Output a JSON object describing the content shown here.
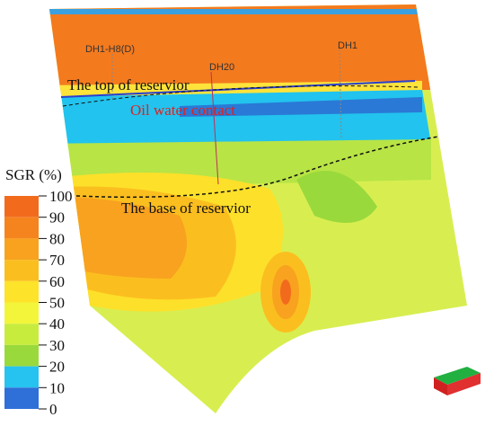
{
  "colorbar": {
    "title": "SGR (%)",
    "ticks": [
      0,
      10,
      20,
      30,
      40,
      50,
      60,
      70,
      80,
      90,
      100
    ]
  },
  "wells": [
    {
      "label": "DH1-H8(D)"
    },
    {
      "label": "DH20"
    },
    {
      "label": "DH1"
    }
  ],
  "annotations": {
    "top": "The top of reservior",
    "contact": "Oil water contact",
    "base": "The base of reservior"
  }
}
